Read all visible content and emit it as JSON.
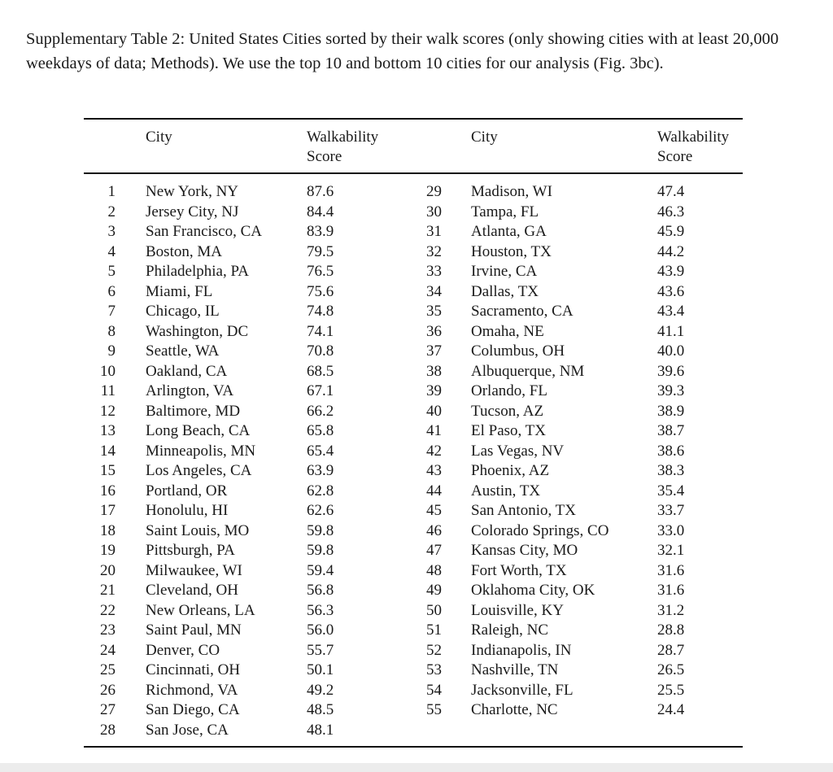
{
  "caption": "Supplementary Table 2: United States Cities sorted by their walk scores (only showing cities with at least 20,000 weekdays of data; Methods). We use the top 10 and bottom 10 cities for our analysis (Fig. 3bc).",
  "headers": {
    "city": "City",
    "score_line1": "Walkability",
    "score_line2": "Score"
  },
  "rows": [
    {
      "rank": "1",
      "city": "New York, NY",
      "score": "87.6"
    },
    {
      "rank": "2",
      "city": "Jersey City, NJ",
      "score": "84.4"
    },
    {
      "rank": "3",
      "city": "San Francisco, CA",
      "score": "83.9"
    },
    {
      "rank": "4",
      "city": "Boston, MA",
      "score": "79.5"
    },
    {
      "rank": "5",
      "city": "Philadelphia, PA",
      "score": "76.5"
    },
    {
      "rank": "6",
      "city": "Miami, FL",
      "score": "75.6"
    },
    {
      "rank": "7",
      "city": "Chicago, IL",
      "score": "74.8"
    },
    {
      "rank": "8",
      "city": "Washington, DC",
      "score": "74.1"
    },
    {
      "rank": "9",
      "city": "Seattle, WA",
      "score": "70.8"
    },
    {
      "rank": "10",
      "city": "Oakland, CA",
      "score": "68.5"
    },
    {
      "rank": "11",
      "city": "Arlington, VA",
      "score": "67.1"
    },
    {
      "rank": "12",
      "city": "Baltimore, MD",
      "score": "66.2"
    },
    {
      "rank": "13",
      "city": "Long Beach, CA",
      "score": "65.8"
    },
    {
      "rank": "14",
      "city": "Minneapolis, MN",
      "score": "65.4"
    },
    {
      "rank": "15",
      "city": "Los Angeles, CA",
      "score": "63.9"
    },
    {
      "rank": "16",
      "city": "Portland, OR",
      "score": "62.8"
    },
    {
      "rank": "17",
      "city": "Honolulu, HI",
      "score": "62.6"
    },
    {
      "rank": "18",
      "city": "Saint Louis, MO",
      "score": "59.8"
    },
    {
      "rank": "19",
      "city": "Pittsburgh, PA",
      "score": "59.8"
    },
    {
      "rank": "20",
      "city": "Milwaukee, WI",
      "score": "59.4"
    },
    {
      "rank": "21",
      "city": "Cleveland, OH",
      "score": "56.8"
    },
    {
      "rank": "22",
      "city": "New Orleans, LA",
      "score": "56.3"
    },
    {
      "rank": "23",
      "city": "Saint Paul, MN",
      "score": "56.0"
    },
    {
      "rank": "24",
      "city": "Denver, CO",
      "score": "55.7"
    },
    {
      "rank": "25",
      "city": "Cincinnati, OH",
      "score": "50.1"
    },
    {
      "rank": "26",
      "city": "Richmond, VA",
      "score": "49.2"
    },
    {
      "rank": "27",
      "city": "San Diego, CA",
      "score": "48.5"
    },
    {
      "rank": "28",
      "city": "San Jose, CA",
      "score": "48.1"
    },
    {
      "rank": "29",
      "city": "Madison, WI",
      "score": "47.4"
    },
    {
      "rank": "30",
      "city": "Tampa, FL",
      "score": "46.3"
    },
    {
      "rank": "31",
      "city": "Atlanta, GA",
      "score": "45.9"
    },
    {
      "rank": "32",
      "city": "Houston, TX",
      "score": "44.2"
    },
    {
      "rank": "33",
      "city": "Irvine, CA",
      "score": "43.9"
    },
    {
      "rank": "34",
      "city": "Dallas, TX",
      "score": "43.6"
    },
    {
      "rank": "35",
      "city": "Sacramento, CA",
      "score": "43.4"
    },
    {
      "rank": "36",
      "city": "Omaha, NE",
      "score": "41.1"
    },
    {
      "rank": "37",
      "city": "Columbus, OH",
      "score": "40.0"
    },
    {
      "rank": "38",
      "city": "Albuquerque, NM",
      "score": "39.6"
    },
    {
      "rank": "39",
      "city": "Orlando, FL",
      "score": "39.3"
    },
    {
      "rank": "40",
      "city": "Tucson, AZ",
      "score": "38.9"
    },
    {
      "rank": "41",
      "city": "El Paso, TX",
      "score": "38.7"
    },
    {
      "rank": "42",
      "city": "Las Vegas, NV",
      "score": "38.6"
    },
    {
      "rank": "43",
      "city": "Phoenix, AZ",
      "score": "38.3"
    },
    {
      "rank": "44",
      "city": "Austin, TX",
      "score": "35.4"
    },
    {
      "rank": "45",
      "city": "San Antonio, TX",
      "score": "33.7"
    },
    {
      "rank": "46",
      "city": "Colorado Springs, CO",
      "score": "33.0"
    },
    {
      "rank": "47",
      "city": "Kansas City, MO",
      "score": "32.1"
    },
    {
      "rank": "48",
      "city": "Fort Worth, TX",
      "score": "31.6"
    },
    {
      "rank": "49",
      "city": "Oklahoma City, OK",
      "score": "31.6"
    },
    {
      "rank": "50",
      "city": "Louisville, KY",
      "score": "31.2"
    },
    {
      "rank": "51",
      "city": "Raleigh, NC",
      "score": "28.8"
    },
    {
      "rank": "52",
      "city": "Indianapolis, IN",
      "score": "28.7"
    },
    {
      "rank": "53",
      "city": "Nashville, TN",
      "score": "26.5"
    },
    {
      "rank": "54",
      "city": "Jacksonville, FL",
      "score": "25.5"
    },
    {
      "rank": "55",
      "city": "Charlotte, NC",
      "score": "24.4"
    }
  ]
}
